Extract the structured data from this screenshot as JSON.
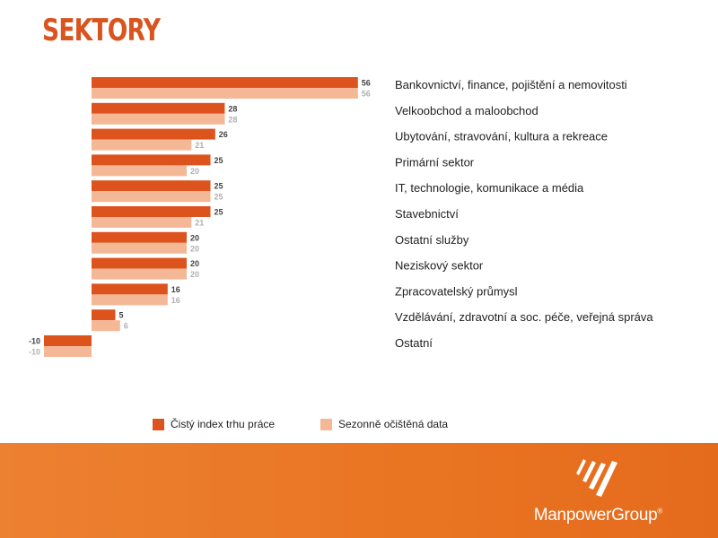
{
  "page": {
    "title": "SEKTORY"
  },
  "chart_data": {
    "type": "bar",
    "orientation": "horizontal",
    "categories": [
      "Bankovnictví, finance, pojištění a nemovitosti",
      "Velkoobchod a maloobchod",
      "Ubytování, stravování, kultura a rekreace",
      "Primární sektor",
      "IT, technologie, komunikace a média",
      "Stavebnictví",
      "Ostatní služby",
      "Neziskový sektor",
      "Zpracovatelský průmysl",
      "Vzdělávání, zdravotní a soc. péče, veřejná správa",
      "Ostatní"
    ],
    "series": [
      {
        "name": "Čistý index trhu práce",
        "color": "#dd531d",
        "values": [
          56,
          28,
          26,
          25,
          25,
          25,
          20,
          20,
          16,
          5,
          -10
        ]
      },
      {
        "name": "Sezonně očištěná data",
        "color": "#f4b896",
        "values": [
          56,
          28,
          21,
          20,
          25,
          21,
          20,
          20,
          16,
          6,
          -10
        ]
      }
    ],
    "legend_position": "bottom",
    "grid": false
  },
  "legend": {
    "items": [
      {
        "label": "Čistý index trhu práce",
        "color": "#dd531d"
      },
      {
        "label": "Sezonně očištěná data",
        "color": "#f4b896"
      }
    ]
  },
  "footer": {
    "brand": "ManpowerGroup",
    "trademark": "®",
    "background": "#e97422"
  }
}
